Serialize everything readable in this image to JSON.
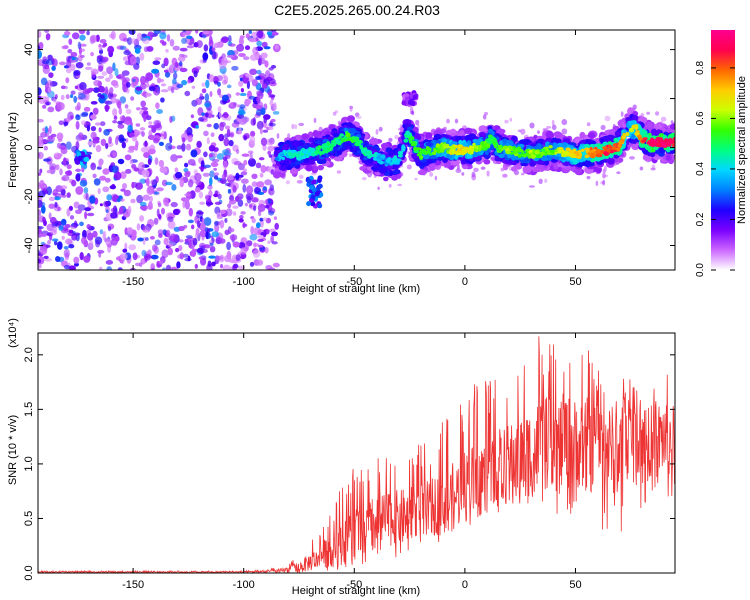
{
  "title": "C2E5.2025.265.00.24.R03",
  "chart_data": [
    {
      "type": "heatmap",
      "xlabel": "Height of straight line (km)",
      "ylabel": "Frequency (Hz)",
      "xlim": [
        -193,
        95
      ],
      "ylim": [
        -50,
        48
      ],
      "xticks": [
        -150,
        -100,
        -50,
        0,
        50
      ],
      "yticks": [
        -40,
        -20,
        0,
        20,
        40
      ],
      "colorbar": {
        "label": "Normalized spectral amplitude",
        "range": [
          0,
          0.95
        ],
        "ticks": [
          "0.0",
          "0.2",
          "0.4",
          "0.6",
          "0.8"
        ],
        "colors": [
          "#ffffff",
          "#cc66ff",
          "#7a00ff",
          "#1f00ff",
          "#0080ff",
          "#00d8ff",
          "#00ff80",
          "#33ff00",
          "#ccff00",
          "#ffcc00",
          "#ff6600",
          "#ff0050",
          "#ff0090"
        ]
      },
      "noise_region_x": [
        -193,
        -85
      ],
      "ridge": {
        "x": [
          -85,
          -80,
          -75,
          -70,
          -65,
          -60,
          -55,
          -52,
          -48,
          -45,
          -40,
          -35,
          -30,
          -28,
          -26,
          -24,
          -20,
          -15,
          -10,
          -5,
          0,
          5,
          10,
          12,
          15,
          20,
          25,
          30,
          35,
          40,
          45,
          50,
          55,
          60,
          65,
          70,
          72,
          75,
          78,
          80,
          85,
          90,
          95
        ],
        "y": [
          -4,
          -3,
          -3,
          -2,
          -1,
          1,
          4,
          5,
          2,
          -2,
          -4,
          -6,
          -5,
          0,
          6,
          3,
          -3,
          -1,
          0,
          -1,
          -1,
          0,
          1,
          4,
          0,
          -1,
          -2,
          -3,
          -2,
          -1,
          -2,
          -3,
          -2,
          -2,
          -1,
          1,
          4,
          8,
          7,
          4,
          2,
          2,
          2
        ],
        "amplitude": [
          0.35,
          0.4,
          0.45,
          0.4,
          0.5,
          0.45,
          0.5,
          0.55,
          0.5,
          0.45,
          0.4,
          0.35,
          0.4,
          0.4,
          0.45,
          0.5,
          0.55,
          0.55,
          0.6,
          0.65,
          0.7,
          0.6,
          0.55,
          0.5,
          0.55,
          0.6,
          0.55,
          0.6,
          0.55,
          0.6,
          0.65,
          0.7,
          0.75,
          0.8,
          0.85,
          0.8,
          0.7,
          0.65,
          0.7,
          0.8,
          0.9,
          0.9,
          0.85
        ]
      },
      "features": [
        {
          "x": -173,
          "y": -4,
          "amplitude": 0.4
        },
        {
          "x": -68,
          "y": -18,
          "amplitude": 0.35
        },
        {
          "x": -25,
          "y": 20,
          "amplitude": 0.2
        }
      ]
    },
    {
      "type": "line",
      "xlabel": "Height of straight line (km)",
      "ylabel": "SNR (10 * v/v)",
      "yscale_label": "(x10⁴)",
      "xlim": [
        -193,
        95
      ],
      "ylim": [
        0,
        2.2
      ],
      "xticks": [
        -150,
        -100,
        -50,
        0,
        50
      ],
      "yticks": [
        "0.0",
        "0.5",
        "1.0",
        "1.5",
        "2.0"
      ],
      "color": "#ee3333",
      "series": [
        {
          "x": [
            -193,
            -180,
            -160,
            -140,
            -120,
            -100,
            -90,
            -85,
            -80,
            -75,
            -70,
            -65,
            -60,
            -55,
            -50,
            -45,
            -40,
            -35,
            -30,
            -25,
            -20,
            -15,
            -10,
            -5,
            0,
            5,
            10,
            15,
            20,
            25,
            30,
            35,
            40,
            45,
            50,
            55,
            60,
            65,
            70,
            75,
            80,
            85,
            90,
            95
          ],
          "y": [
            0.01,
            0.01,
            0.01,
            0.01,
            0.01,
            0.01,
            0.015,
            0.02,
            0.03,
            0.05,
            0.1,
            0.15,
            0.22,
            0.3,
            0.35,
            0.4,
            0.45,
            0.5,
            0.5,
            0.52,
            0.55,
            0.6,
            0.65,
            0.7,
            0.8,
            0.85,
            0.9,
            0.95,
            1.0,
            1.05,
            1.1,
            1.2,
            1.15,
            1.2,
            1.2,
            1.15,
            1.2,
            1.15,
            1.1,
            1.2,
            1.25,
            1.2,
            1.25,
            1.2
          ],
          "max": [
            0.02,
            0.02,
            0.02,
            0.02,
            0.02,
            0.02,
            0.03,
            0.05,
            0.1,
            0.2,
            0.3,
            0.45,
            0.6,
            0.85,
            1.0,
            0.95,
            1.1,
            1.05,
            1.1,
            1.2,
            1.25,
            1.2,
            1.4,
            1.5,
            1.65,
            1.75,
            1.8,
            1.9,
            1.95,
            2.1,
            2.2,
            2.2,
            2.1,
            2.15,
            2.0,
            2.2,
            1.9,
            1.75,
            1.8,
            1.85,
            1.6,
            1.7,
            1.85,
            1.75
          ],
          "min": [
            0.0,
            0.0,
            0.0,
            0.0,
            0.0,
            0.0,
            0.0,
            0.0,
            0.0,
            0.0,
            0.0,
            0.0,
            0.02,
            0.03,
            0.05,
            0.08,
            0.1,
            0.12,
            0.15,
            0.2,
            0.22,
            0.25,
            0.3,
            0.35,
            0.4,
            0.45,
            0.5,
            0.55,
            0.6,
            0.6,
            0.65,
            0.6,
            0.55,
            0.5,
            0.55,
            0.5,
            0.45,
            0.3,
            0.25,
            0.35,
            0.5,
            0.45,
            0.5,
            0.55
          ]
        }
      ]
    }
  ]
}
